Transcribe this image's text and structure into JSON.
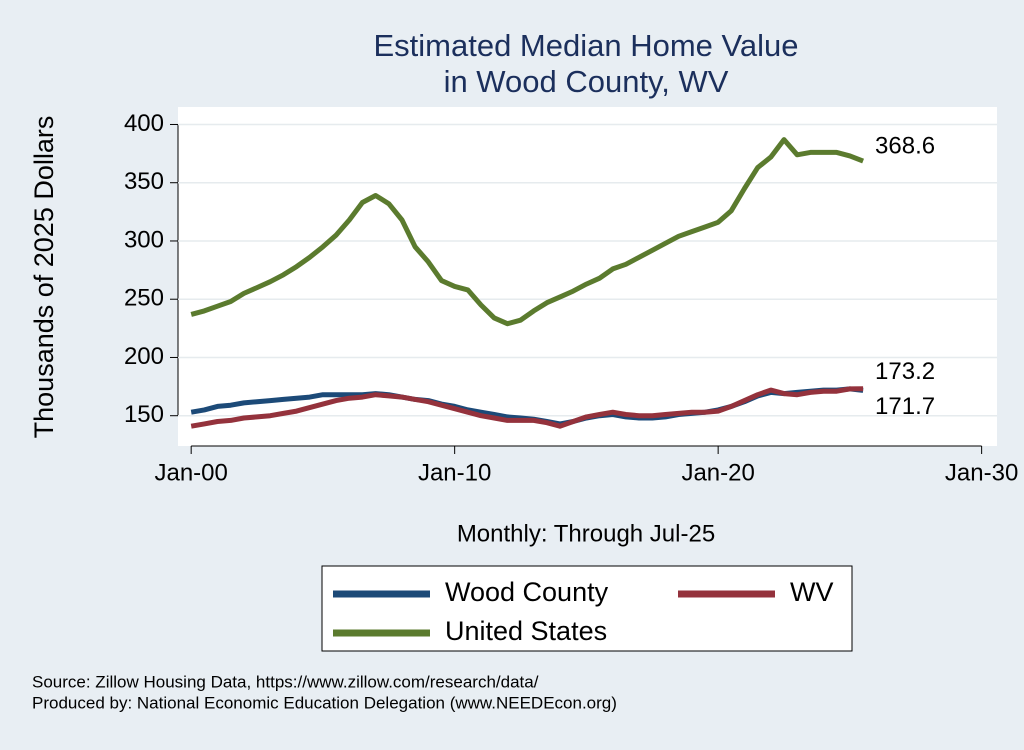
{
  "chart_data": {
    "type": "line",
    "title": [
      "Estimated Median Home Value",
      "in Wood County, WV"
    ],
    "y_label": "Thousands of 2025 Dollars",
    "x_label": "Monthly: Through Jul-25",
    "notes": [
      "Source: Zillow Housing Data, https://www.zillow.com/research/data/",
      "Produced by: National Economic Education Delegation (www.NEEDEcon.org)"
    ],
    "x": [
      "2000-01",
      "2000-07",
      "2001-01",
      "2001-07",
      "2002-01",
      "2002-07",
      "2003-01",
      "2003-07",
      "2004-01",
      "2004-07",
      "2005-01",
      "2005-07",
      "2006-01",
      "2006-07",
      "2007-01",
      "2007-07",
      "2008-01",
      "2008-07",
      "2009-01",
      "2009-07",
      "2010-01",
      "2010-07",
      "2011-01",
      "2011-07",
      "2012-01",
      "2012-07",
      "2013-01",
      "2013-07",
      "2014-01",
      "2014-07",
      "2015-01",
      "2015-07",
      "2016-01",
      "2016-07",
      "2017-01",
      "2017-07",
      "2018-01",
      "2018-07",
      "2019-01",
      "2019-07",
      "2020-01",
      "2020-07",
      "2021-01",
      "2021-07",
      "2022-01",
      "2022-07",
      "2023-01",
      "2023-07",
      "2024-01",
      "2024-07",
      "2025-01",
      "2025-07"
    ],
    "series": [
      {
        "name": "United States",
        "color": "#5b7b2e",
        "values": [
          237,
          240,
          244,
          248,
          255,
          260,
          265,
          271,
          278,
          286,
          295,
          305,
          318,
          333,
          339,
          332,
          318,
          295,
          282,
          266,
          261,
          258,
          245,
          234,
          229,
          232,
          240,
          247,
          252,
          257,
          263,
          268,
          276,
          280,
          286,
          292,
          298,
          304,
          308,
          312,
          316,
          326,
          345,
          363,
          372,
          387,
          374,
          376,
          376,
          376,
          373,
          368.6
        ]
      },
      {
        "name": "Wood County",
        "color": "#1c4a78",
        "values": [
          153,
          155,
          158,
          159,
          161,
          162,
          163,
          164,
          165,
          166,
          168,
          168,
          168,
          168,
          169,
          168,
          166,
          164,
          163,
          160,
          158,
          155,
          153,
          151,
          149,
          148,
          147,
          145,
          143,
          145,
          148,
          150,
          151,
          149,
          148,
          148,
          149,
          151,
          152,
          153,
          155,
          158,
          162,
          167,
          170,
          169,
          170,
          171,
          172,
          172,
          173,
          171.7
        ]
      },
      {
        "name": "WV",
        "color": "#94323c",
        "values": [
          141,
          143,
          145,
          146,
          148,
          149,
          150,
          152,
          154,
          157,
          160,
          163,
          165,
          166,
          168,
          167,
          166,
          164,
          162,
          159,
          156,
          153,
          150,
          148,
          146,
          146,
          146,
          144,
          141,
          145,
          149,
          151,
          153,
          151,
          150,
          150,
          151,
          152,
          153,
          153,
          154,
          158,
          163,
          168,
          172,
          169,
          168,
          170,
          171,
          171,
          173,
          173.2
        ]
      }
    ],
    "xlim": [
      "1999-07",
      "2030-08"
    ],
    "xticks": [
      {
        "value": "2000-01",
        "label": "Jan-00"
      },
      {
        "value": "2010-01",
        "label": "Jan-10"
      },
      {
        "value": "2020-01",
        "label": "Jan-20"
      },
      {
        "value": "2030-01",
        "label": "Jan-30"
      }
    ],
    "ylim": [
      124,
      415
    ],
    "yticks": [
      150,
      200,
      250,
      300,
      350,
      400
    ],
    "grid": true,
    "legend": "bottom"
  }
}
